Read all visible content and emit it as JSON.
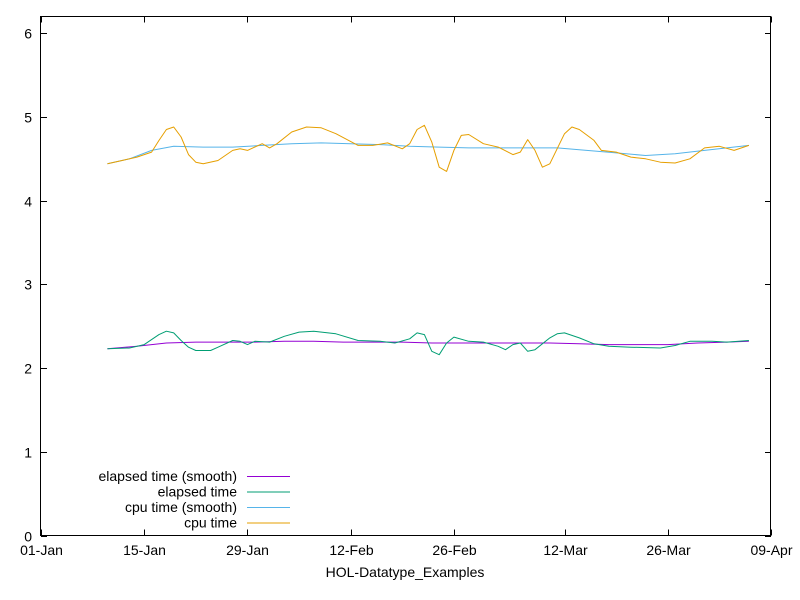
{
  "chart_data": {
    "type": "line",
    "title": "",
    "xlabel": "HOL-Datatype_Examples",
    "ylabel": "",
    "xlim": [
      "2000-01-01",
      "2000-04-09"
    ],
    "ylim": [
      0,
      6.2
    ],
    "x_ticks": [
      {
        "date": "2000-01-01",
        "label": "01-Jan"
      },
      {
        "date": "2000-01-15",
        "label": "15-Jan"
      },
      {
        "date": "2000-01-29",
        "label": "29-Jan"
      },
      {
        "date": "2000-02-12",
        "label": "12-Feb"
      },
      {
        "date": "2000-02-26",
        "label": "26-Feb"
      },
      {
        "date": "2000-03-12",
        "label": "12-Mar"
      },
      {
        "date": "2000-03-26",
        "label": "26-Mar"
      },
      {
        "date": "2000-04-09",
        "label": "09-Apr"
      }
    ],
    "y_ticks": [
      0,
      1,
      2,
      3,
      4,
      5,
      6
    ],
    "grid": false,
    "legend_position": "bottom-left",
    "series": [
      {
        "name": "elapsed time (smooth)",
        "color": "#9400d3",
        "points": [
          [
            "2000-01-10",
            2.23
          ],
          [
            "2000-01-14",
            2.26
          ],
          [
            "2000-01-18",
            2.3
          ],
          [
            "2000-01-22",
            2.31
          ],
          [
            "2000-01-26",
            2.31
          ],
          [
            "2000-01-30",
            2.31
          ],
          [
            "2000-02-03",
            2.32
          ],
          [
            "2000-02-07",
            2.32
          ],
          [
            "2000-02-11",
            2.31
          ],
          [
            "2000-02-15",
            2.31
          ],
          [
            "2000-02-19",
            2.31
          ],
          [
            "2000-02-23",
            2.3
          ],
          [
            "2000-02-27",
            2.3
          ],
          [
            "2000-03-02",
            2.3
          ],
          [
            "2000-03-06",
            2.3
          ],
          [
            "2000-03-10",
            2.3
          ],
          [
            "2000-03-14",
            2.29
          ],
          [
            "2000-03-18",
            2.28
          ],
          [
            "2000-03-22",
            2.28
          ],
          [
            "2000-03-26",
            2.28
          ],
          [
            "2000-03-30",
            2.3
          ],
          [
            "2000-04-03",
            2.31
          ],
          [
            "2000-04-06",
            2.32
          ]
        ]
      },
      {
        "name": "elapsed time",
        "color": "#009e73",
        "points": [
          [
            "2000-01-10",
            2.23
          ],
          [
            "2000-01-13",
            2.24
          ],
          [
            "2000-01-15",
            2.28
          ],
          [
            "2000-01-17",
            2.4
          ],
          [
            "2000-01-18",
            2.44
          ],
          [
            "2000-01-19",
            2.42
          ],
          [
            "2000-01-20",
            2.33
          ],
          [
            "2000-01-21",
            2.25
          ],
          [
            "2000-01-22",
            2.21
          ],
          [
            "2000-01-24",
            2.21
          ],
          [
            "2000-01-25",
            2.25
          ],
          [
            "2000-01-27",
            2.33
          ],
          [
            "2000-01-28",
            2.32
          ],
          [
            "2000-01-29",
            2.28
          ],
          [
            "2000-01-30",
            2.32
          ],
          [
            "2000-02-01",
            2.31
          ],
          [
            "2000-02-03",
            2.38
          ],
          [
            "2000-02-05",
            2.43
          ],
          [
            "2000-02-07",
            2.44
          ],
          [
            "2000-02-10",
            2.41
          ],
          [
            "2000-02-13",
            2.33
          ],
          [
            "2000-02-16",
            2.32
          ],
          [
            "2000-02-18",
            2.3
          ],
          [
            "2000-02-20",
            2.35
          ],
          [
            "2000-02-21",
            2.42
          ],
          [
            "2000-02-22",
            2.4
          ],
          [
            "2000-02-23",
            2.2
          ],
          [
            "2000-02-24",
            2.16
          ],
          [
            "2000-02-25",
            2.3
          ],
          [
            "2000-02-26",
            2.37
          ],
          [
            "2000-02-28",
            2.32
          ],
          [
            "2000-03-01",
            2.31
          ],
          [
            "2000-03-03",
            2.26
          ],
          [
            "2000-03-04",
            2.22
          ],
          [
            "2000-03-05",
            2.28
          ],
          [
            "2000-03-06",
            2.3
          ],
          [
            "2000-03-07",
            2.2
          ],
          [
            "2000-03-08",
            2.22
          ],
          [
            "2000-03-10",
            2.36
          ],
          [
            "2000-03-11",
            2.41
          ],
          [
            "2000-03-12",
            2.42
          ],
          [
            "2000-03-14",
            2.36
          ],
          [
            "2000-03-16",
            2.29
          ],
          [
            "2000-03-18",
            2.26
          ],
          [
            "2000-03-21",
            2.25
          ],
          [
            "2000-03-25",
            2.24
          ],
          [
            "2000-03-27",
            2.27
          ],
          [
            "2000-03-29",
            2.32
          ],
          [
            "2000-04-01",
            2.32
          ],
          [
            "2000-04-03",
            2.31
          ],
          [
            "2000-04-06",
            2.33
          ]
        ]
      },
      {
        "name": "cpu time (smooth)",
        "color": "#56b4e9",
        "points": [
          [
            "2000-01-10",
            4.44
          ],
          [
            "2000-01-13",
            4.5
          ],
          [
            "2000-01-16",
            4.6
          ],
          [
            "2000-01-19",
            4.65
          ],
          [
            "2000-01-23",
            4.64
          ],
          [
            "2000-01-27",
            4.64
          ],
          [
            "2000-01-31",
            4.66
          ],
          [
            "2000-02-04",
            4.68
          ],
          [
            "2000-02-08",
            4.69
          ],
          [
            "2000-02-12",
            4.68
          ],
          [
            "2000-02-16",
            4.67
          ],
          [
            "2000-02-20",
            4.65
          ],
          [
            "2000-02-24",
            4.64
          ],
          [
            "2000-02-28",
            4.63
          ],
          [
            "2000-03-03",
            4.63
          ],
          [
            "2000-03-07",
            4.63
          ],
          [
            "2000-03-11",
            4.63
          ],
          [
            "2000-03-15",
            4.6
          ],
          [
            "2000-03-19",
            4.57
          ],
          [
            "2000-03-23",
            4.54
          ],
          [
            "2000-03-27",
            4.56
          ],
          [
            "2000-03-31",
            4.6
          ],
          [
            "2000-04-03",
            4.63
          ],
          [
            "2000-04-06",
            4.66
          ]
        ]
      },
      {
        "name": "cpu time",
        "color": "#e69f00",
        "points": [
          [
            "2000-01-10",
            4.44
          ],
          [
            "2000-01-12",
            4.48
          ],
          [
            "2000-01-14",
            4.52
          ],
          [
            "2000-01-16",
            4.58
          ],
          [
            "2000-01-17",
            4.72
          ],
          [
            "2000-01-18",
            4.85
          ],
          [
            "2000-01-19",
            4.88
          ],
          [
            "2000-01-20",
            4.76
          ],
          [
            "2000-01-21",
            4.55
          ],
          [
            "2000-01-22",
            4.46
          ],
          [
            "2000-01-23",
            4.44
          ],
          [
            "2000-01-25",
            4.48
          ],
          [
            "2000-01-27",
            4.6
          ],
          [
            "2000-01-28",
            4.62
          ],
          [
            "2000-01-29",
            4.6
          ],
          [
            "2000-01-31",
            4.68
          ],
          [
            "2000-02-01",
            4.63
          ],
          [
            "2000-02-02",
            4.68
          ],
          [
            "2000-02-04",
            4.82
          ],
          [
            "2000-02-06",
            4.88
          ],
          [
            "2000-02-08",
            4.87
          ],
          [
            "2000-02-10",
            4.8
          ],
          [
            "2000-02-13",
            4.66
          ],
          [
            "2000-02-15",
            4.66
          ],
          [
            "2000-02-17",
            4.69
          ],
          [
            "2000-02-19",
            4.62
          ],
          [
            "2000-02-20",
            4.68
          ],
          [
            "2000-02-21",
            4.85
          ],
          [
            "2000-02-22",
            4.9
          ],
          [
            "2000-02-23",
            4.7
          ],
          [
            "2000-02-24",
            4.4
          ],
          [
            "2000-02-25",
            4.35
          ],
          [
            "2000-02-26",
            4.6
          ],
          [
            "2000-02-27",
            4.78
          ],
          [
            "2000-02-28",
            4.79
          ],
          [
            "2000-03-01",
            4.68
          ],
          [
            "2000-03-03",
            4.64
          ],
          [
            "2000-03-05",
            4.55
          ],
          [
            "2000-03-06",
            4.58
          ],
          [
            "2000-03-07",
            4.73
          ],
          [
            "2000-03-08",
            4.6
          ],
          [
            "2000-03-09",
            4.4
          ],
          [
            "2000-03-10",
            4.44
          ],
          [
            "2000-03-12",
            4.8
          ],
          [
            "2000-03-13",
            4.88
          ],
          [
            "2000-03-14",
            4.85
          ],
          [
            "2000-03-16",
            4.72
          ],
          [
            "2000-03-17",
            4.6
          ],
          [
            "2000-03-19",
            4.58
          ],
          [
            "2000-03-21",
            4.52
          ],
          [
            "2000-03-23",
            4.5
          ],
          [
            "2000-03-25",
            4.46
          ],
          [
            "2000-03-27",
            4.45
          ],
          [
            "2000-03-29",
            4.5
          ],
          [
            "2000-03-31",
            4.63
          ],
          [
            "2000-04-02",
            4.65
          ],
          [
            "2000-04-04",
            4.6
          ],
          [
            "2000-04-06",
            4.66
          ]
        ]
      }
    ]
  }
}
